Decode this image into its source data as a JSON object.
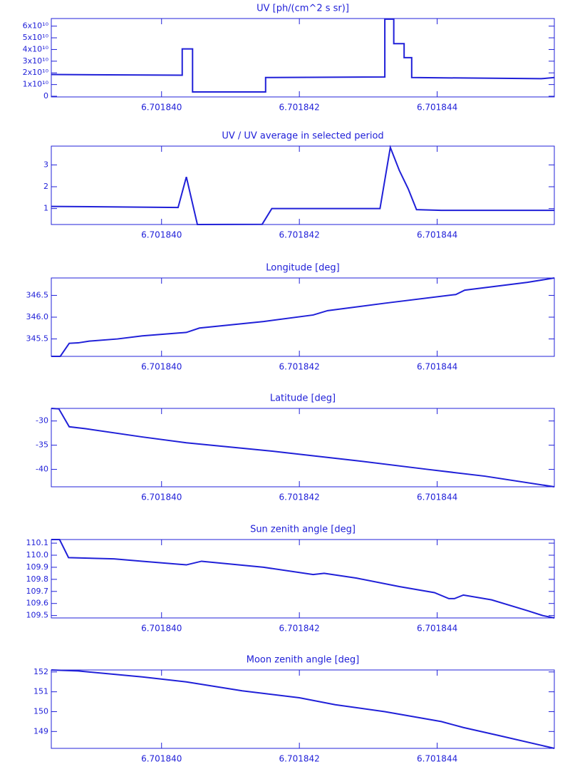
{
  "chart_data": [
    {
      "type": "line",
      "title": "UV [ph/(cm^2 s sr)]",
      "color": "#2020d8",
      "x": [
        6.7018384,
        6.7018403,
        6.7018403,
        6.70184045,
        6.70184045,
        6.70184151,
        6.70184151,
        6.70184324,
        6.70184324,
        6.70184337,
        6.70184337,
        6.70184352,
        6.70184352,
        6.70184363,
        6.70184363,
        6.70184551,
        6.7018457
      ],
      "values": [
        18600000000,
        18000000000,
        40500000000,
        40500000000,
        3700000000,
        3700000000,
        16000000000,
        16500000000,
        66000000000,
        66000000000,
        45000000000,
        45000000000,
        33000000000,
        33000000000,
        16000000000,
        15000000000,
        16000000000
      ],
      "xlim": [
        6.7018384,
        6.7018457
      ],
      "xticks": [
        {
          "value": 6.70184,
          "label": "6.701840"
        },
        6.701842,
        6.701844
      ],
      "ylim": [
        -600000000,
        66500000000
      ],
      "yticks": [
        0,
        {
          "value": 10000000000,
          "label": "1x10¹⁰"
        },
        {
          "value": 20000000000,
          "label": "2x10¹⁰"
        },
        {
          "value": 30000000000,
          "label": "3x10¹⁰"
        },
        {
          "value": 40000000000,
          "label": "4x10¹⁰"
        },
        {
          "value": 50000000000,
          "label": "5x10¹⁰"
        },
        {
          "value": 60000000000,
          "label": "6x10¹⁰"
        }
      ]
    },
    {
      "type": "line",
      "title": "UV / UV average in selected period",
      "color": "#2020d8",
      "x": [
        6.7018384,
        6.70184024,
        6.70184036,
        6.70184052,
        6.70184146,
        6.7018416,
        6.70184262,
        6.70184317,
        6.70184332,
        6.70184345,
        6.70184358,
        6.7018437,
        6.70184406,
        6.7018457
      ],
      "values": [
        1.1,
        1.05,
        2.45,
        0.27,
        0.28,
        1.0,
        1.0,
        1.0,
        3.8,
        2.75,
        1.9,
        0.95,
        0.92,
        0.92
      ],
      "xlim": [
        6.7018384,
        6.7018457
      ],
      "xticks": [
        {
          "value": 6.70184,
          "label": "6.701840"
        },
        6.701842,
        6.701844
      ],
      "ylim": [
        0.27,
        3.86
      ],
      "yticks": [
        1,
        2,
        3
      ]
    },
    {
      "type": "line",
      "title": "Longitude [deg]",
      "color": "#2020d8",
      "x": [
        6.7018384,
        6.70183853,
        6.70183866,
        6.70183879,
        6.70183895,
        6.70183936,
        6.70183972,
        6.70184036,
        6.70184055,
        6.70184148,
        6.7018422,
        6.70184241,
        6.70184324,
        6.70184427,
        6.7018444,
        6.70184531,
        6.7018457
      ],
      "values": [
        345.1,
        345.1,
        345.4,
        345.41,
        345.45,
        345.5,
        345.57,
        345.65,
        345.75,
        345.9,
        346.05,
        346.15,
        346.32,
        346.52,
        346.62,
        346.8,
        346.9
      ],
      "xlim": [
        6.7018384,
        6.7018457
      ],
      "xticks": [
        {
          "value": 6.70184,
          "label": "6.701840"
        },
        6.701842,
        6.701844
      ],
      "ylim": [
        345.1,
        346.9
      ],
      "yticks": [
        345.5,
        {
          "value": 346,
          "label": "346.0"
        },
        346.5
      ]
    },
    {
      "type": "line",
      "title": "Latitude [deg]",
      "color": "#2020d8",
      "x": [
        6.7018384,
        6.70183851,
        6.70183866,
        6.7018389,
        6.70183972,
        6.70184036,
        6.70184158,
        6.70184283,
        6.70184386,
        6.70184469,
        6.7018457
      ],
      "values": [
        -27.4,
        -27.5,
        -31.2,
        -31.6,
        -33.3,
        -34.5,
        -36.2,
        -38.2,
        -40.0,
        -41.4,
        -43.6
      ],
      "xlim": [
        6.7018384,
        6.7018457
      ],
      "xticks": [
        {
          "value": 6.70184,
          "label": "6.701840"
        },
        6.701842,
        6.701844
      ],
      "ylim": [
        -43.6,
        -27.4
      ],
      "yticks": [
        -40,
        -35,
        -30
      ]
    },
    {
      "type": "line",
      "title": "Sun zenith angle [deg]",
      "color": "#2020d8",
      "x": [
        6.7018384,
        6.70183852,
        6.70183865,
        6.70183931,
        6.70183972,
        6.70184036,
        6.70184058,
        6.70184148,
        6.7018422,
        6.70184236,
        6.70184283,
        6.70184345,
        6.70184396,
        6.70184417,
        6.70184425,
        6.70184438,
        6.70184479,
        6.70184531,
        6.70184553,
        6.7018457
      ],
      "values": [
        110.13,
        110.13,
        109.98,
        109.97,
        109.95,
        109.92,
        109.95,
        109.9,
        109.84,
        109.85,
        109.81,
        109.74,
        109.69,
        109.64,
        109.64,
        109.67,
        109.63,
        109.54,
        109.5,
        109.48
      ],
      "xlim": [
        6.7018384,
        6.7018457
      ],
      "xticks": [
        {
          "value": 6.70184,
          "label": "6.701840"
        },
        6.701842,
        6.701844
      ],
      "ylim": [
        109.48,
        110.13
      ],
      "yticks": [
        109.5,
        109.6,
        109.7,
        109.8,
        109.9,
        {
          "value": 110,
          "label": "110.0"
        },
        110.1
      ]
    },
    {
      "type": "line",
      "title": "Moon zenith angle [deg]",
      "color": "#2020d8",
      "x": [
        6.7018384,
        6.70183879,
        6.70183972,
        6.70184036,
        6.70184117,
        6.701842,
        6.70184252,
        6.70184324,
        6.70184406,
        6.70184438,
        6.70184489,
        6.7018457
      ],
      "values": [
        152.1,
        152.05,
        151.75,
        151.5,
        151.05,
        150.7,
        150.35,
        150.0,
        149.5,
        149.2,
        148.8,
        148.15
      ],
      "xlim": [
        6.7018384,
        6.7018457
      ],
      "xticks": [
        {
          "value": 6.70184,
          "label": "6.701840"
        },
        6.701842,
        6.701844
      ],
      "ylim": [
        148.15,
        152.1
      ],
      "yticks": [
        149,
        150,
        151,
        152
      ]
    }
  ]
}
